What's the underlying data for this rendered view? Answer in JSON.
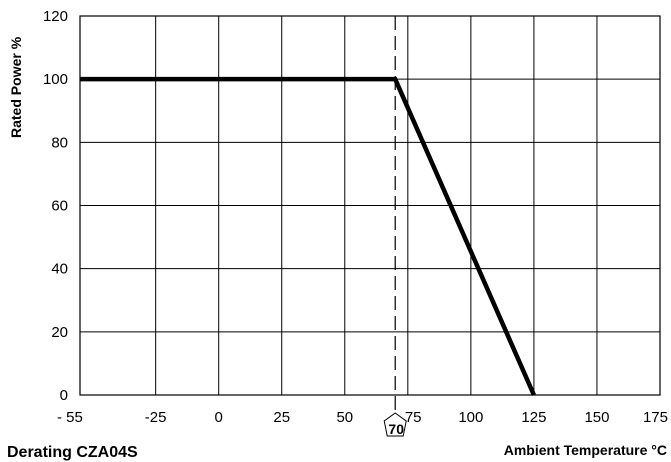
{
  "chart_data": {
    "type": "line",
    "title": "Derating CZA04S",
    "xlabel": "Ambient Temperature °C",
    "ylabel": "Rated Power %",
    "xlim": [
      -55,
      175
    ],
    "ylim": [
      0,
      120
    ],
    "x_ticks": [
      -55,
      -25,
      0,
      25,
      50,
      75,
      100,
      125,
      150,
      175
    ],
    "x_tick_labels": [
      "- 55",
      "-25",
      "0",
      "25",
      "50",
      "75",
      "100",
      "125",
      "150",
      "175"
    ],
    "y_ticks": [
      0,
      20,
      40,
      60,
      80,
      100,
      120
    ],
    "y_tick_labels": [
      "0",
      "20",
      "40",
      "60",
      "80",
      "100",
      "120"
    ],
    "grid": true,
    "series": [
      {
        "x": [
          -55,
          70,
          125
        ],
        "y": [
          100,
          100,
          0
        ],
        "color": "#000000"
      }
    ],
    "reference_lines": [
      {
        "orientation": "vertical",
        "x": 70,
        "style": "dashed",
        "label": "70"
      }
    ]
  }
}
